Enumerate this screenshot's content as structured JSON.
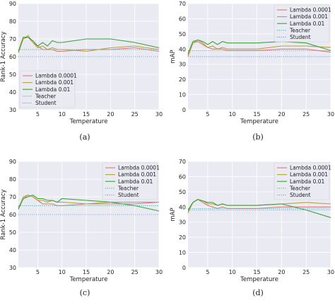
{
  "legend_position": "upper-left",
  "colors": {
    "plot_background": "#eaeaf2",
    "grid": "#ffffff",
    "lambda_0_0001": "#e3747c",
    "lambda_0_001": "#b5a23a",
    "lambda_0_01": "#3aa33a",
    "teacher": "#4cb8a4",
    "student": "#6b9be3"
  },
  "chart_data": [
    {
      "type": "line",
      "caption": "(a)",
      "xlabel": "Temperature",
      "ylabel": "Rank-1 Accuracy",
      "xlim": [
        1,
        30
      ],
      "ylim": [
        30,
        90
      ],
      "xticks": [
        5,
        10,
        15,
        20,
        25,
        30
      ],
      "yticks": [
        30,
        40,
        50,
        60,
        70,
        80,
        90
      ],
      "legend_position": "center-left",
      "series": [
        {
          "name": "Lambda 0.0001",
          "style": "solid",
          "color_key": "lambda_0_0001",
          "x": [
            1,
            2,
            3,
            4,
            5,
            6,
            7,
            8,
            9,
            10,
            15,
            20,
            25,
            30
          ],
          "y": [
            63,
            70,
            71,
            68,
            66,
            64,
            64,
            64,
            63,
            63,
            64,
            64,
            65,
            63
          ]
        },
        {
          "name": "Lambda 0.001",
          "style": "solid",
          "color_key": "lambda_0_001",
          "x": [
            1,
            2,
            3,
            4,
            5,
            6,
            7,
            8,
            9,
            10,
            15,
            20,
            25,
            30
          ],
          "y": [
            62,
            70,
            72,
            68,
            65,
            66,
            64,
            65,
            64,
            64,
            63,
            65,
            66,
            64
          ]
        },
        {
          "name": "Lambda 0.01",
          "style": "solid",
          "color_key": "lambda_0_01",
          "x": [
            1,
            2,
            3,
            4,
            5,
            6,
            7,
            8,
            9,
            10,
            15,
            20,
            25,
            30
          ],
          "y": [
            63,
            71,
            71,
            69,
            66,
            68,
            66,
            69,
            68,
            68,
            70,
            70,
            68,
            65
          ]
        },
        {
          "name": "Teacher",
          "style": "dotted",
          "color_key": "teacher",
          "x": [
            1,
            30
          ],
          "y": [
            64,
            64
          ]
        },
        {
          "name": "Student",
          "style": "dotted",
          "color_key": "student",
          "x": [
            1,
            30
          ],
          "y": [
            60,
            60
          ]
        }
      ]
    },
    {
      "type": "line",
      "caption": "(b)",
      "xlabel": "Temperature",
      "ylabel": "mAP",
      "xlim": [
        1,
        30
      ],
      "ylim": [
        0,
        70
      ],
      "xticks": [
        5,
        10,
        15,
        20,
        25,
        30
      ],
      "yticks": [
        0,
        10,
        20,
        30,
        40,
        50,
        60,
        70
      ],
      "legend_position": "upper-right",
      "series": [
        {
          "name": "Lambda 0.0001",
          "style": "solid",
          "color_key": "lambda_0_0001",
          "x": [
            1,
            2,
            3,
            4,
            5,
            6,
            7,
            8,
            9,
            10,
            15,
            20,
            25,
            30
          ],
          "y": [
            36,
            44,
            45,
            43,
            41,
            40,
            40,
            40,
            39,
            39,
            39,
            40,
            40,
            38
          ]
        },
        {
          "name": "Lambda 0.001",
          "style": "solid",
          "color_key": "lambda_0_001",
          "x": [
            1,
            2,
            3,
            4,
            5,
            6,
            7,
            8,
            9,
            10,
            15,
            20,
            25,
            30
          ],
          "y": [
            35,
            44,
            46,
            44,
            41,
            42,
            40,
            41,
            40,
            40,
            40,
            42,
            42,
            41
          ]
        },
        {
          "name": "Lambda 0.01",
          "style": "solid",
          "color_key": "lambda_0_01",
          "x": [
            1,
            2,
            3,
            4,
            5,
            6,
            7,
            8,
            9,
            10,
            15,
            20,
            25,
            30
          ],
          "y": [
            37,
            45,
            46,
            45,
            43,
            45,
            43,
            45,
            44,
            44,
            44,
            45,
            44,
            39
          ]
        },
        {
          "name": "Teacher",
          "style": "dotted",
          "color_key": "teacher",
          "x": [
            1,
            30
          ],
          "y": [
            39,
            39
          ]
        },
        {
          "name": "Student",
          "style": "dotted",
          "color_key": "student",
          "x": [
            1,
            30
          ],
          "y": [
            35,
            35
          ]
        }
      ]
    },
    {
      "type": "line",
      "caption": "(c)",
      "xlabel": "Temperature",
      "ylabel": "Rank-1 Accuracy",
      "xlim": [
        1,
        30
      ],
      "ylim": [
        30,
        90
      ],
      "xticks": [
        5,
        10,
        15,
        20,
        25,
        30
      ],
      "yticks": [
        30,
        40,
        50,
        60,
        70,
        80,
        90
      ],
      "legend_position": "upper-right",
      "series": [
        {
          "name": "Lambda 0.0001",
          "style": "solid",
          "color_key": "lambda_0_0001",
          "x": [
            1,
            2,
            3,
            4,
            5,
            6,
            7,
            8,
            9,
            10,
            15,
            20,
            25,
            30
          ],
          "y": [
            64,
            69,
            71,
            70,
            68,
            66,
            66,
            66,
            65,
            65,
            66,
            66,
            66,
            67
          ]
        },
        {
          "name": "Lambda 0.001",
          "style": "solid",
          "color_key": "lambda_0_001",
          "x": [
            1,
            2,
            3,
            4,
            5,
            6,
            7,
            8,
            9,
            10,
            15,
            20,
            25,
            30
          ],
          "y": [
            63,
            70,
            71,
            70,
            68,
            68,
            67,
            68,
            67,
            67,
            66,
            67,
            67,
            67
          ]
        },
        {
          "name": "Lambda 0.01",
          "style": "solid",
          "color_key": "lambda_0_01",
          "x": [
            1,
            2,
            3,
            4,
            5,
            6,
            7,
            8,
            9,
            10,
            15,
            20,
            25,
            30
          ],
          "y": [
            63,
            69,
            70,
            71,
            69,
            69,
            68,
            68,
            67,
            69,
            68,
            67,
            65,
            62
          ]
        },
        {
          "name": "Teacher",
          "style": "dotted",
          "color_key": "teacher",
          "x": [
            1,
            30
          ],
          "y": [
            65,
            65
          ]
        },
        {
          "name": "Student",
          "style": "dotted",
          "color_key": "student",
          "x": [
            1,
            30
          ],
          "y": [
            60,
            60
          ]
        }
      ]
    },
    {
      "type": "line",
      "caption": "(d)",
      "xlabel": "Temperature",
      "ylabel": "mAP",
      "xlim": [
        1,
        30
      ],
      "ylim": [
        0,
        70
      ],
      "xticks": [
        5,
        10,
        15,
        20,
        25,
        30
      ],
      "yticks": [
        0,
        10,
        20,
        30,
        40,
        50,
        60,
        70
      ],
      "legend_position": "upper-right",
      "series": [
        {
          "name": "Lambda 0.0001",
          "style": "solid",
          "color_key": "lambda_0_0001",
          "x": [
            1,
            2,
            3,
            4,
            5,
            6,
            7,
            8,
            9,
            10,
            15,
            20,
            25,
            30
          ],
          "y": [
            37,
            43,
            45,
            43,
            41,
            40,
            39,
            40,
            39,
            39,
            39,
            40,
            40,
            40
          ]
        },
        {
          "name": "Lambda 0.001",
          "style": "solid",
          "color_key": "lambda_0_001",
          "x": [
            1,
            2,
            3,
            4,
            5,
            6,
            7,
            8,
            9,
            10,
            15,
            20,
            25,
            30
          ],
          "y": [
            36,
            43,
            45,
            44,
            42,
            42,
            41,
            42,
            41,
            41,
            41,
            42,
            43,
            42
          ]
        },
        {
          "name": "Lambda 0.01",
          "style": "solid",
          "color_key": "lambda_0_01",
          "x": [
            1,
            2,
            3,
            4,
            5,
            6,
            7,
            8,
            9,
            10,
            15,
            20,
            25,
            30
          ],
          "y": [
            38,
            43,
            45,
            44,
            43,
            43,
            41,
            42,
            41,
            41,
            41,
            42,
            38,
            33
          ]
        },
        {
          "name": "Teacher",
          "style": "dotted",
          "color_key": "teacher",
          "x": [
            1,
            30
          ],
          "y": [
            39,
            39
          ]
        },
        {
          "name": "Student",
          "style": "dotted",
          "color_key": "student",
          "x": [
            1,
            30
          ],
          "y": [
            38,
            38
          ]
        }
      ]
    }
  ]
}
